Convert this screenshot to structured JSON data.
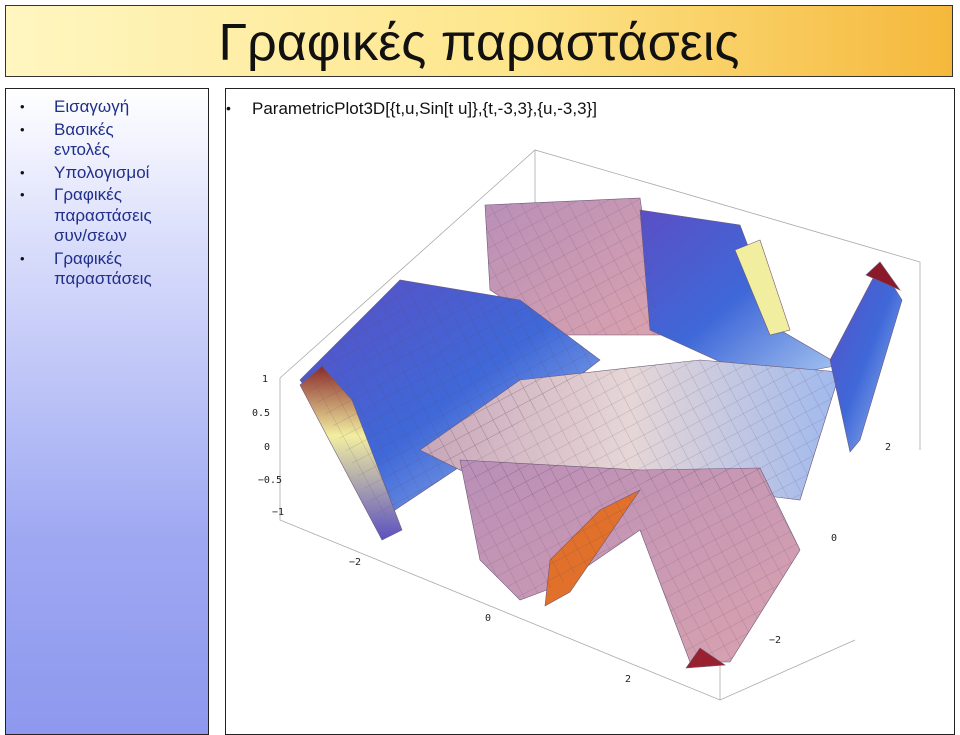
{
  "header": {
    "title": "Γραφικές παραστάσεις"
  },
  "sidebar": {
    "items": [
      "Εισαγωγή",
      "Βασικές εντολές",
      "Υπολογισμοί",
      "Γραφικές παραστάσεις συν/σεων",
      "Γραφικές παραστάσεις"
    ]
  },
  "content": {
    "bullet": "ParametricPlot3D[{t,u,Sin[t u]},{t,-3,3},{u,-3,3}]",
    "plot": {
      "z_ticks": [
        "1",
        "0.5",
        "0",
        "−0.5",
        "−1"
      ],
      "u_ticks": [
        "2",
        "0",
        "−2"
      ],
      "t_ticks": [
        "−2",
        "0",
        "2"
      ]
    }
  }
}
